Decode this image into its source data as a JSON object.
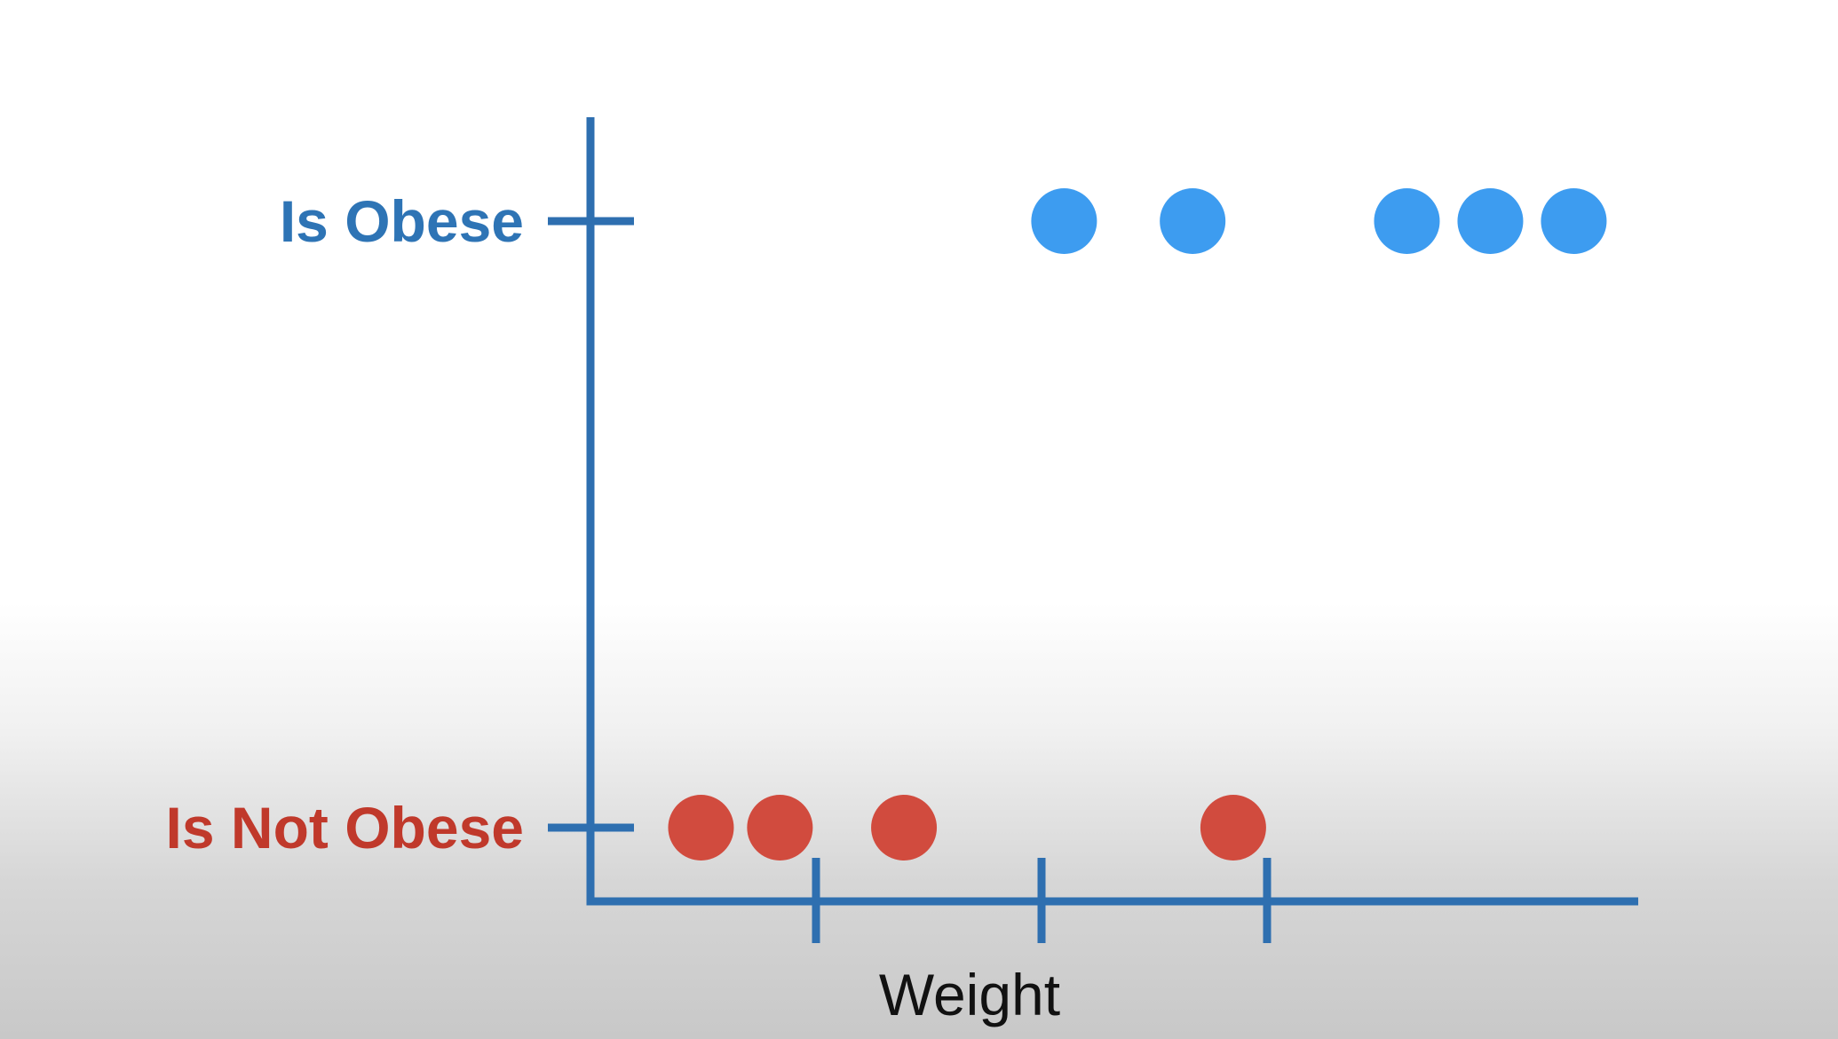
{
  "chart_data": {
    "type": "scatter",
    "title": "",
    "xlabel": "Weight",
    "ylabel": "",
    "x_axis_ticks": 3,
    "grid": false,
    "y_categories": [
      {
        "id": "not_obese",
        "label": "Is Not Obese",
        "color": "#c0392b"
      },
      {
        "id": "obese",
        "label": "Is Obese",
        "color": "#2e74b5"
      }
    ],
    "series": [
      {
        "category": "obese",
        "color": "#3d9cf0",
        "x": [
          2.1,
          2.67,
          3.62,
          3.99,
          4.36
        ]
      },
      {
        "category": "not_obese",
        "color": "#d14b3e",
        "x": [
          0.49,
          0.84,
          1.39,
          2.85
        ]
      }
    ],
    "xlim": [
      0,
      4.7
    ],
    "axis_color": "#2e6fb0"
  }
}
